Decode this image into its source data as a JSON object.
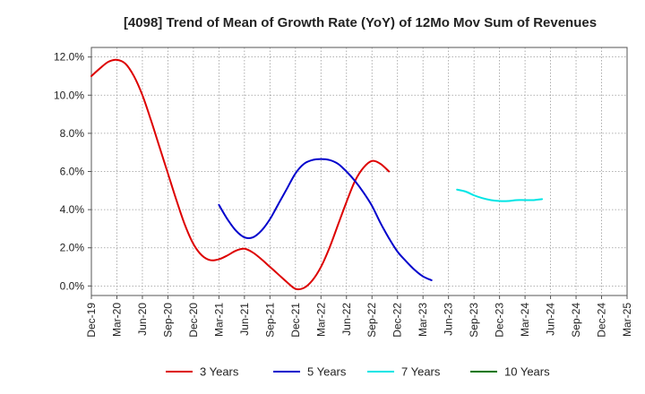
{
  "chart_data": {
    "type": "line",
    "title": "[4098]  Trend of Mean of Growth Rate (YoY) of 12Mo Mov Sum of Revenues",
    "xlabel": "",
    "ylabel": "",
    "x_ticks": [
      "Dec-19",
      "Mar-20",
      "Jun-20",
      "Sep-20",
      "Dec-20",
      "Mar-21",
      "Jun-21",
      "Sep-21",
      "Dec-21",
      "Mar-22",
      "Jun-22",
      "Sep-22",
      "Dec-22",
      "Mar-23",
      "Jun-23",
      "Sep-23",
      "Dec-23",
      "Mar-24",
      "Jun-24",
      "Sep-24",
      "Dec-24",
      "Mar-25"
    ],
    "y_ticks": [
      "0.0%",
      "2.0%",
      "4.0%",
      "6.0%",
      "8.0%",
      "10.0%",
      "12.0%"
    ],
    "ylim": [
      -0.5,
      12.5
    ],
    "grid": true,
    "legend_position": "bottom",
    "series": [
      {
        "name": "3 Years",
        "color": "#dd0000",
        "start_index": 0,
        "values": [
          11.0,
          11.4,
          11.75,
          11.85,
          11.65,
          11.0,
          10.0,
          8.7,
          7.3,
          5.9,
          4.5,
          3.2,
          2.2,
          1.6,
          1.35,
          1.4,
          1.6,
          1.85,
          1.95,
          1.75,
          1.4,
          1.0,
          0.6,
          0.2,
          -0.15,
          -0.1,
          0.3,
          1.0,
          2.0,
          3.2,
          4.4,
          5.5,
          6.2,
          6.55,
          6.4,
          6.0
        ]
      },
      {
        "name": "5 Years",
        "color": "#0000cc",
        "start_index": 15,
        "values": [
          4.25,
          3.5,
          2.9,
          2.55,
          2.55,
          2.9,
          3.5,
          4.3,
          5.1,
          5.9,
          6.4,
          6.6,
          6.65,
          6.6,
          6.4,
          6.0,
          5.5,
          4.9,
          4.2,
          3.3,
          2.5,
          1.8,
          1.3,
          0.85,
          0.5,
          0.3
        ]
      },
      {
        "name": "7 Years",
        "color": "#00e5e5",
        "start_index": 43,
        "values": [
          5.05,
          4.95,
          4.75,
          4.6,
          4.5,
          4.45,
          4.45,
          4.5,
          4.5,
          4.5,
          4.55
        ]
      },
      {
        "name": "10 Years",
        "color": "#007700",
        "start_index": 0,
        "values": []
      }
    ]
  }
}
